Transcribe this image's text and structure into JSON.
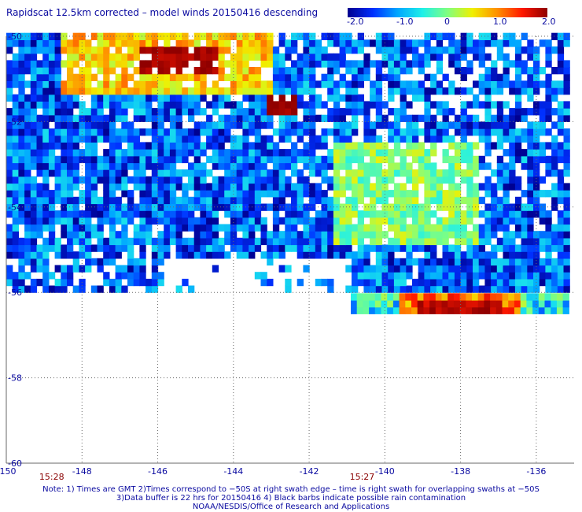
{
  "title": "Rapidscat 12.5km corrected – model winds 20150416 descending",
  "colorbar": {
    "ticks": [
      "-2.0",
      "-1.0",
      "0",
      "1.0",
      "2.0"
    ],
    "range": [
      -2.0,
      2.0
    ],
    "colors": [
      "#000090",
      "#0030ff",
      "#00a8ff",
      "#20f0e8",
      "#80ff80",
      "#f0f000",
      "#ff9000",
      "#ff1800",
      "#900000"
    ]
  },
  "chart_data": {
    "type": "heatmap",
    "title": "Rapidscat 12.5km corrected – model winds 20150416 descending",
    "xlim": [
      -150,
      -135
    ],
    "ylim": [
      -60,
      -50
    ],
    "x_ticks": [
      "-150",
      "-148",
      "-146",
      "-144",
      "-142",
      "-140",
      "-138",
      "-136"
    ],
    "y_ticks": [
      "-50",
      "-52",
      "-54",
      "-56",
      "-58",
      "-60"
    ],
    "value_range": [
      -2.0,
      2.0
    ],
    "grid": "dotted",
    "swath_times": [
      {
        "label": "15:28",
        "lon": -148.8
      },
      {
        "label": "15:27",
        "lon": -140.6
      }
    ],
    "regions": [
      {
        "name": "upper swath",
        "lon": [
          -150,
          -135.2
        ],
        "lat": [
          -56.0,
          -50.0
        ],
        "typical_value": -1.3
      },
      {
        "name": "maximum north-west",
        "lon": [
          -146.5,
          -144.5
        ],
        "lat": [
          -51.0,
          -50.3
        ],
        "value": 1.9
      },
      {
        "name": "maximum near -143",
        "lon": [
          -143.2,
          -142.4
        ],
        "lat": [
          -51.9,
          -51.5
        ],
        "value": 2.0
      },
      {
        "name": "positive band",
        "lon": [
          -148.6,
          -143.0
        ],
        "lat": [
          -51.4,
          -50.0
        ],
        "value": 0.7
      },
      {
        "name": "near-zero band",
        "lon": [
          -141.5,
          -137.6
        ],
        "lat": [
          -55.0,
          -52.6
        ],
        "value": 0.0
      },
      {
        "name": "lower strip",
        "lon": [
          -140.9,
          -135.2
        ],
        "lat": [
          -56.5,
          -56.1
        ],
        "typical_value": -0.5
      },
      {
        "name": "lower strip maximum",
        "lon": [
          -139.2,
          -137.0
        ],
        "lat": [
          -56.6,
          -56.2
        ],
        "value": 2.0
      }
    ]
  },
  "notes": [
    "Note: 1) Times are GMT 2)Times correspond to −50S at right swath edge – time is right swath for overlapping swaths at −50S",
    "3)Data buffer is 22 hrs for 20150416 4) Black barbs indicate possible rain contamination",
    "NOAA/NESDIS/Office of Research and Applications"
  ]
}
